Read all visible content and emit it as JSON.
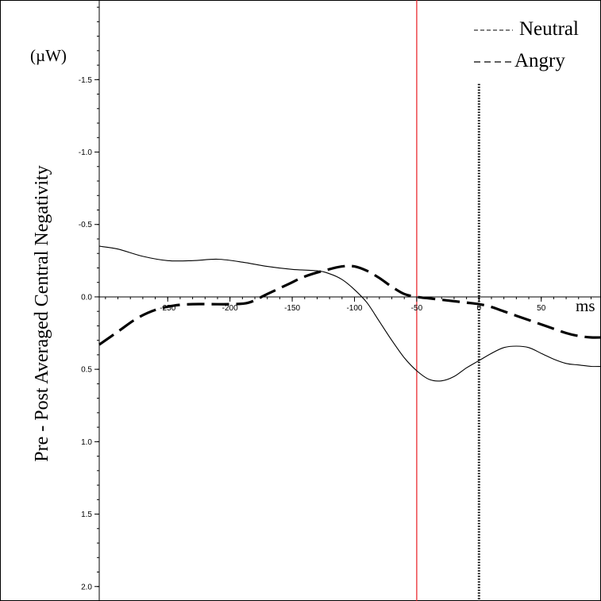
{
  "chart_data": {
    "type": "line",
    "xlabel": "ms",
    "ylabel": "Pre - Post Averaged Central Negativity",
    "unit_label": "(µW)",
    "x_axis_ticks": [
      -250,
      -200,
      -150,
      -100,
      -50,
      0,
      50
    ],
    "y_axis_ticks": [
      -1.5,
      -1.0,
      -0.5,
      0.0,
      0.5,
      1.0,
      1.5,
      2.0
    ],
    "y_axis_tick_labels": [
      "-1.5",
      "-1.0",
      "-0.5",
      "0.0",
      "0.5",
      "1.0",
      "1.5",
      "2.0"
    ],
    "xlim": [
      -305,
      98
    ],
    "ylim": [
      -2.05,
      2.1
    ],
    "y_inverted": true,
    "legend_position": "top-right",
    "series": [
      {
        "name": "Neutral",
        "style": "solid-thin",
        "color": "#000000",
        "x": [
          -305,
          -290,
          -270,
          -250,
          -230,
          -210,
          -190,
          -170,
          -150,
          -130,
          -120,
          -110,
          -100,
          -90,
          -80,
          -70,
          -60,
          -50,
          -40,
          -30,
          -20,
          -10,
          0,
          10,
          20,
          30,
          40,
          50,
          60,
          70,
          80,
          90,
          98
        ],
        "y": [
          -0.35,
          -0.33,
          -0.28,
          -0.25,
          -0.25,
          -0.26,
          -0.24,
          -0.21,
          -0.19,
          -0.18,
          -0.16,
          -0.12,
          -0.05,
          0.04,
          0.17,
          0.3,
          0.42,
          0.51,
          0.57,
          0.58,
          0.55,
          0.49,
          0.44,
          0.39,
          0.35,
          0.34,
          0.35,
          0.39,
          0.43,
          0.46,
          0.47,
          0.48,
          0.48
        ]
      },
      {
        "name": "Angry",
        "style": "dashed-thick",
        "color": "#000000",
        "x": [
          -305,
          -290,
          -275,
          -260,
          -245,
          -230,
          -215,
          -200,
          -185,
          -170,
          -155,
          -140,
          -125,
          -110,
          -100,
          -90,
          -80,
          -70,
          -60,
          -50,
          -40,
          -30,
          -20,
          -10,
          0,
          10,
          20,
          30,
          40,
          50,
          60,
          70,
          80,
          90,
          98
        ],
        "y": [
          0.33,
          0.24,
          0.15,
          0.09,
          0.06,
          0.05,
          0.05,
          0.05,
          0.04,
          -0.02,
          -0.08,
          -0.14,
          -0.18,
          -0.21,
          -0.21,
          -0.18,
          -0.13,
          -0.07,
          -0.02,
          0.0,
          0.01,
          0.02,
          0.03,
          0.04,
          0.05,
          0.07,
          0.1,
          0.13,
          0.16,
          0.19,
          0.22,
          0.25,
          0.27,
          0.28,
          0.28
        ]
      }
    ],
    "annotations": [
      {
        "type": "vertical-line",
        "x": -50,
        "color": "#e8191f",
        "style": "solid"
      },
      {
        "type": "vertical-line",
        "x": 0,
        "color": "#000000",
        "style": "dotted",
        "y_top": -1.47
      }
    ]
  }
}
